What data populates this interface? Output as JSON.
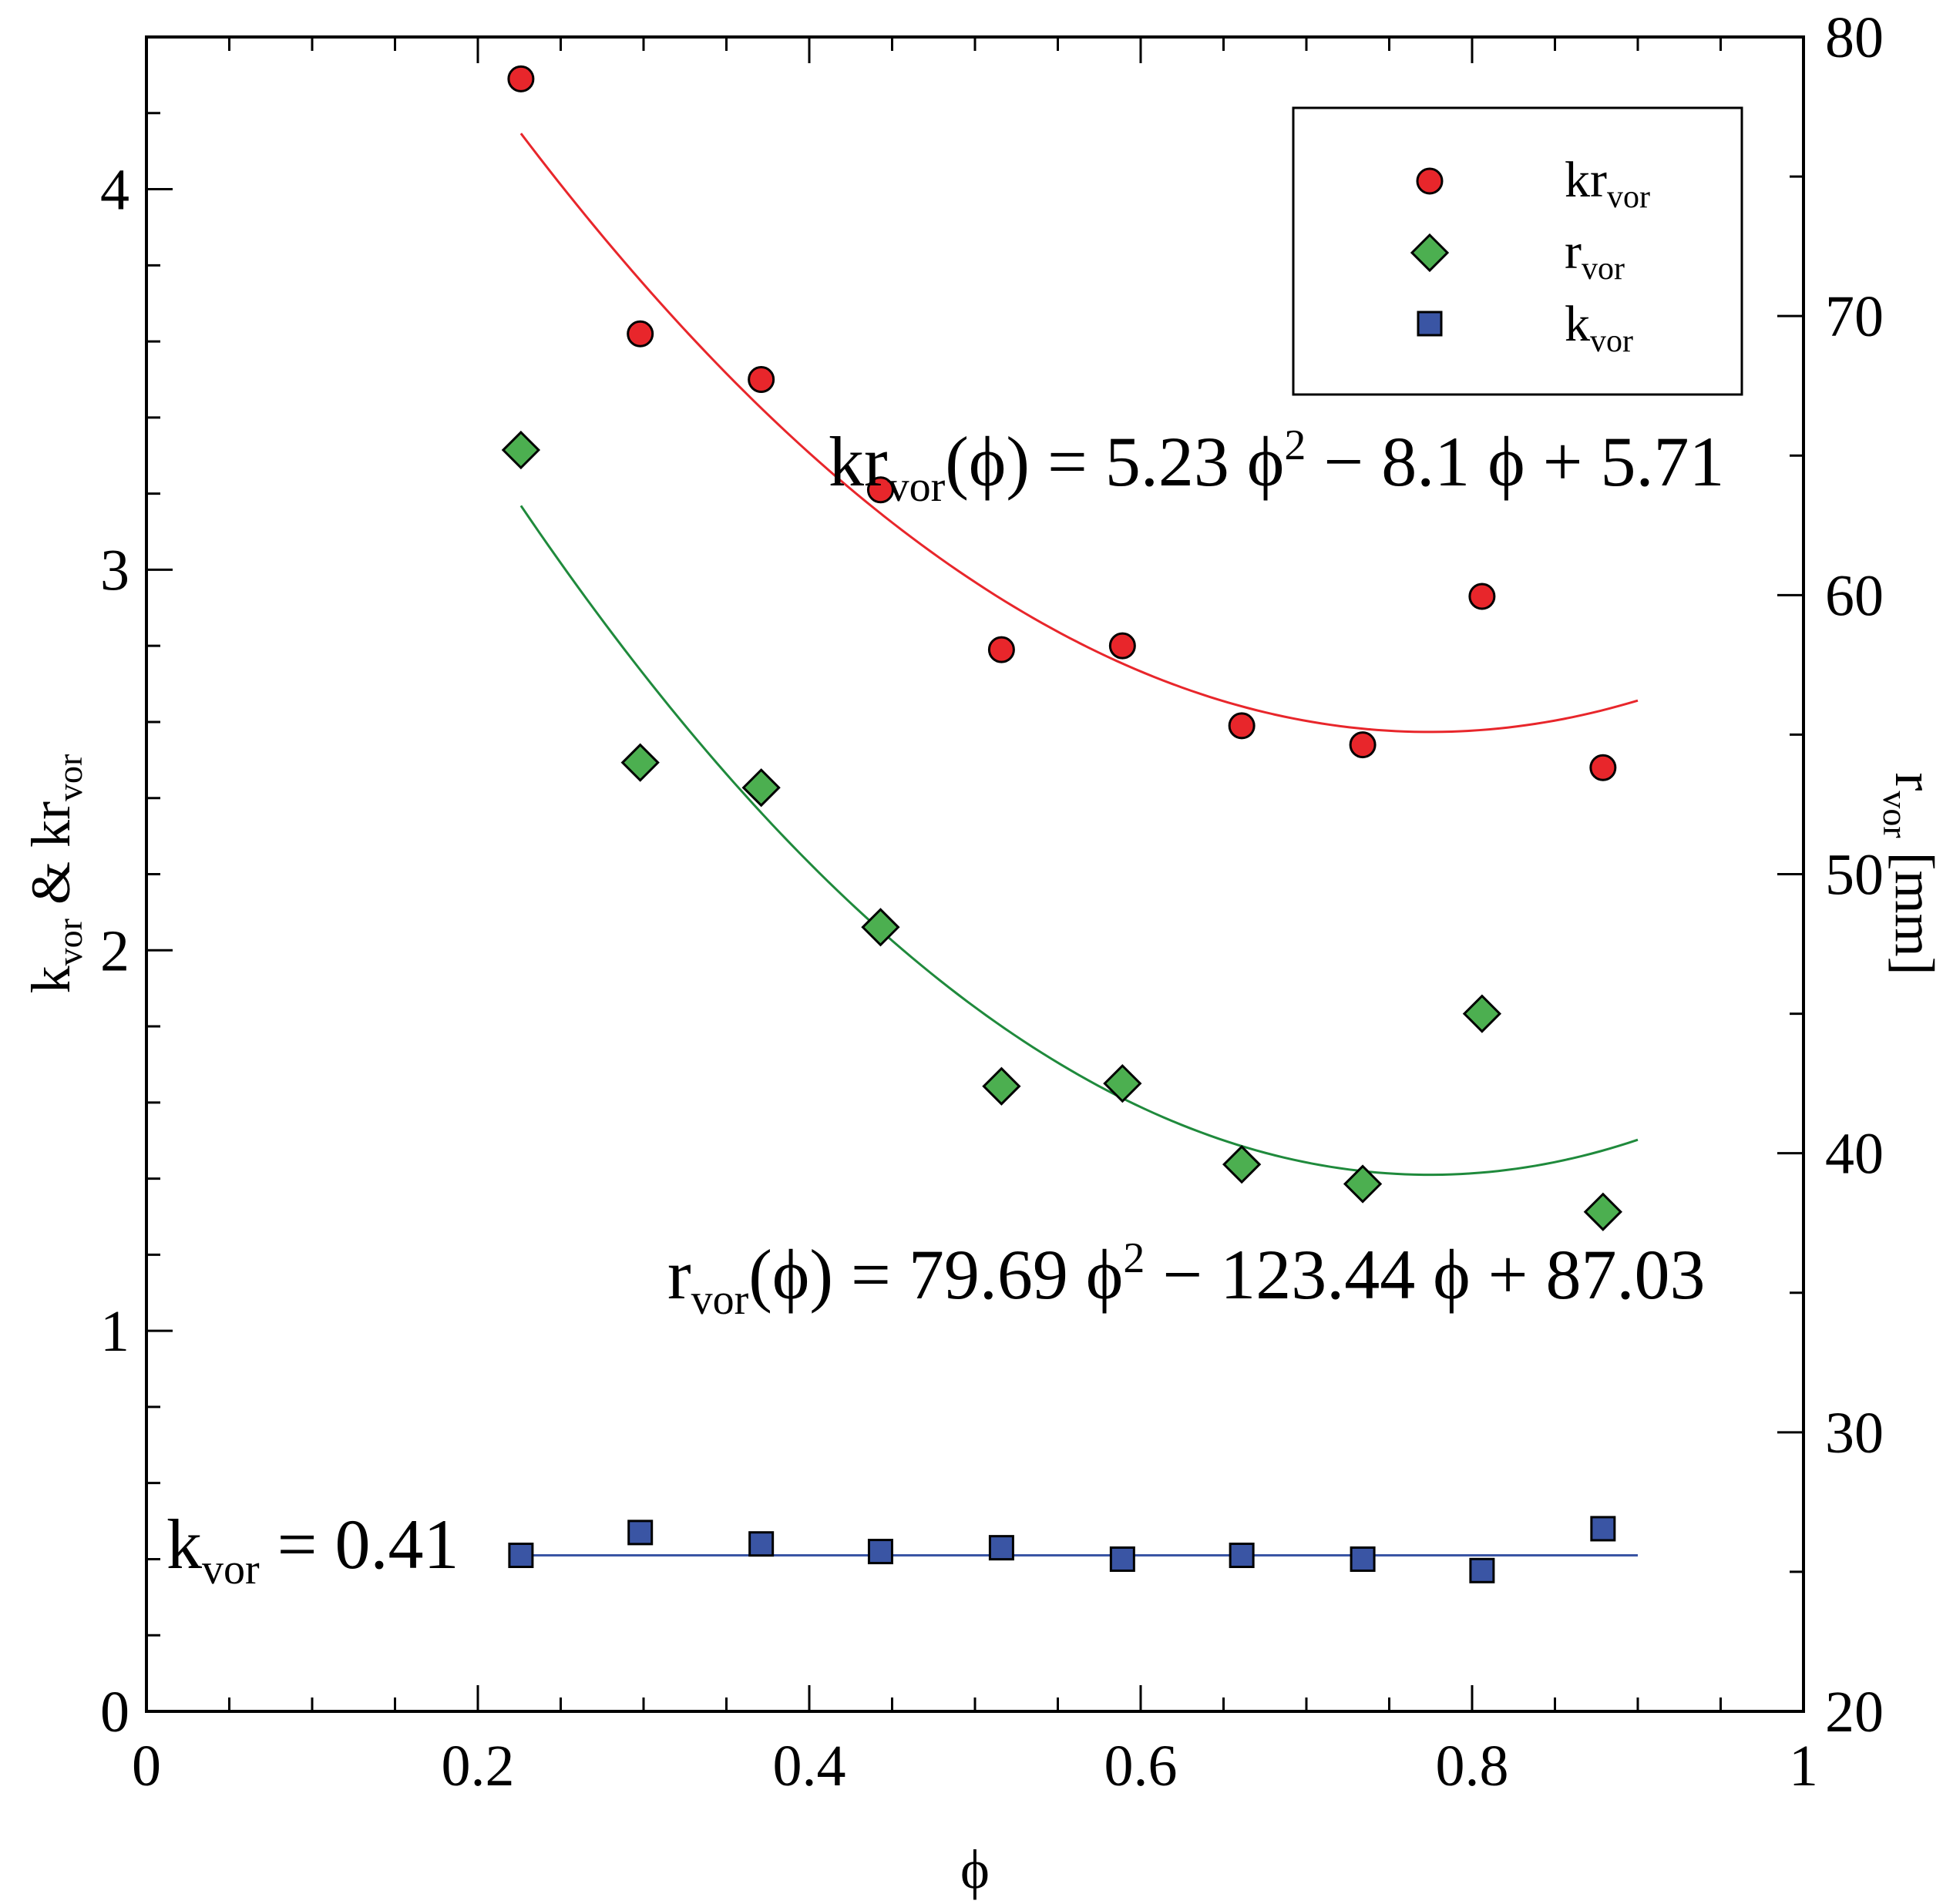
{
  "chart_data": {
    "type": "scatter",
    "x_label": "ϕ",
    "y_left_label": {
      "main1": "k",
      "sub1": "vor",
      "main2": " & kr",
      "sub2": "vor"
    },
    "y_right_label": {
      "main1": "r",
      "sub1": "vor",
      "main2": " [mm]"
    },
    "x_range": [
      0,
      1
    ],
    "y_left_range": [
      0,
      4.4
    ],
    "y_right_range": [
      20,
      80
    ],
    "x_ticks": [
      "0",
      "0.2",
      "0.4",
      "0.6",
      "0.8",
      "1"
    ],
    "y_left_ticks": [
      "0",
      "1",
      "2",
      "3",
      "4"
    ],
    "y_right_ticks": [
      "20",
      "30",
      "40",
      "50",
      "60",
      "70",
      "80"
    ],
    "y_right_tick_values": [
      20,
      30,
      40,
      50,
      60,
      70,
      80
    ],
    "series": [
      {
        "name": "kr_vor",
        "legend_main": "kr",
        "legend_sub": "vor",
        "axis": "left",
        "marker": "circle",
        "color": "#e8262b",
        "x": [
          0.226,
          0.298,
          0.371,
          0.443,
          0.516,
          0.589,
          0.661,
          0.734,
          0.806,
          0.879
        ],
        "y": [
          4.29,
          3.62,
          3.5,
          3.21,
          2.79,
          2.8,
          2.59,
          2.54,
          2.93,
          2.48
        ],
        "fit": {
          "a": 5.23,
          "b": -8.1,
          "c": 5.71,
          "x_range": [
            0.226,
            0.9
          ],
          "color": "#e8262b"
        }
      },
      {
        "name": "r_vor",
        "legend_main": "r",
        "legend_sub": "vor",
        "axis": "right",
        "marker": "diamond",
        "color": "#4caf50",
        "x": [
          0.226,
          0.298,
          0.371,
          0.443,
          0.516,
          0.589,
          0.661,
          0.734,
          0.806,
          0.879
        ],
        "y": [
          65.2,
          54.0,
          53.1,
          48.1,
          42.4,
          42.5,
          39.6,
          38.9,
          45.0,
          37.9
        ],
        "fit": {
          "a": 79.69,
          "b": -123.44,
          "c": 87.03,
          "x_range": [
            0.226,
            0.9
          ],
          "color": "#1f8a3c"
        }
      },
      {
        "name": "k_vor",
        "legend_main": "k",
        "legend_sub": "vor",
        "axis": "left",
        "marker": "square",
        "color": "#3a55a4",
        "x": [
          0.226,
          0.298,
          0.371,
          0.443,
          0.516,
          0.589,
          0.661,
          0.734,
          0.806,
          0.879
        ],
        "y": [
          0.41,
          0.47,
          0.44,
          0.42,
          0.43,
          0.4,
          0.41,
          0.4,
          0.37,
          0.48
        ],
        "fit": {
          "const": 0.41,
          "x_range": [
            0.226,
            0.9
          ],
          "color": "#3a55a4"
        }
      }
    ],
    "annotations": {
      "kr_eq": {
        "a": "kr",
        "sub": "vor",
        "b": "(ϕ) = 5.23 ϕ",
        "sup": "2",
        "c": " − 8.1 ϕ + 5.71"
      },
      "r_eq": {
        "a": "r",
        "sub": "vor",
        "b": "(ϕ) = 79.69 ϕ",
        "sup": "2",
        "c": " − 123.44 ϕ + 87.03"
      },
      "k_eq": {
        "a": "k",
        "sub": "vor",
        "b": " = 0.41"
      }
    },
    "legend_position": "top-right"
  }
}
